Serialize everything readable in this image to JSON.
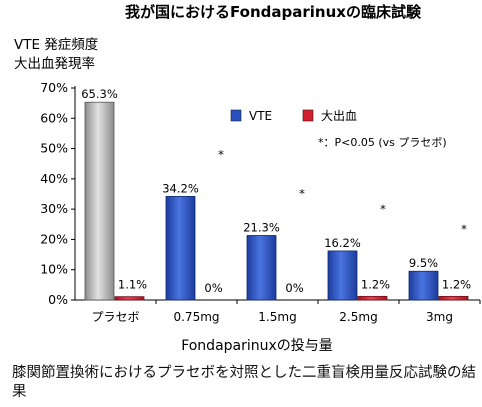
{
  "chart_data": {
    "type": "bar",
    "title": "我が国におけるFondaparinuxの臨床試験",
    "ylabel_lines": [
      "VTE 発症頻度",
      "大出血発現率"
    ],
    "xlabel": "Fondaparinuxの投与量",
    "categories": [
      "プラセボ",
      "0.75mg",
      "1.5mg",
      "2.5mg",
      "3mg"
    ],
    "yticks": [
      "0%",
      "10%",
      "20%",
      "30%",
      "40%",
      "50%",
      "60%",
      "70%"
    ],
    "ylim": [
      0,
      70
    ],
    "grid": false,
    "legend_position": "top-right",
    "series": [
      {
        "name": "VTE",
        "color": "#2a50c0",
        "placebo_color": "#a8a8a8",
        "values": [
          65.3,
          34.2,
          21.3,
          16.2,
          9.5
        ],
        "labels": [
          "65.3%",
          "34.2%",
          "21.3%",
          "16.2%",
          "9.5%"
        ]
      },
      {
        "name": "大出血",
        "color": "#d42030",
        "values": [
          1.1,
          0,
          0,
          1.2,
          1.2
        ],
        "labels": [
          "1.1%",
          "0%",
          "0%",
          "1.2%",
          "1.2%"
        ]
      }
    ],
    "significance_marker": "*",
    "significant": [
      false,
      true,
      true,
      true,
      true
    ],
    "note": "*：P<0.05 (vs プラセボ)"
  },
  "caption": "膝関節置換術におけるプラセボを対照とした二重盲検用量反応試験の結果"
}
